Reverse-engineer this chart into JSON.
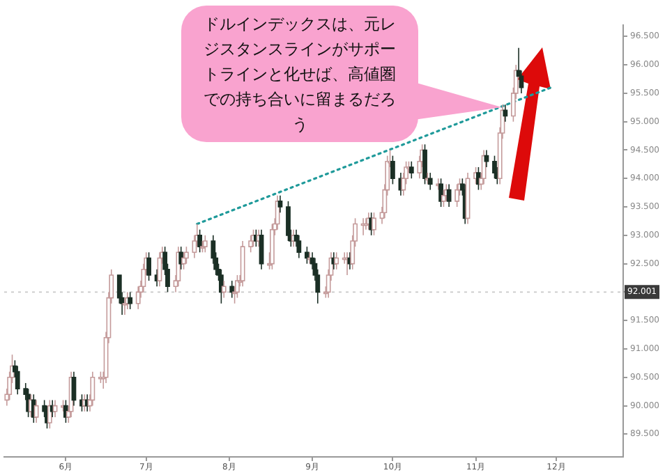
{
  "chart_data": {
    "type": "candlestick",
    "annotations": [
      "ドルインデックスは、元レジスタンスラインがサポートラインと化せば、高値圏での持ち合いに留まるだろう"
    ],
    "x": [
      "--05-10",
      "--05-11",
      "--05-12",
      "--05-13",
      "--05-14",
      "--05-17",
      "--05-18",
      "--05-19",
      "--05-20",
      "--05-21",
      "--05-24",
      "--05-25",
      "--05-26",
      "--05-27",
      "--05-28",
      "--05-31",
      "--06-01",
      "--06-02",
      "--06-03",
      "--06-04",
      "--06-07",
      "--06-08",
      "--06-09",
      "--06-10",
      "--06-11",
      "--06-14",
      "--06-15",
      "--06-16",
      "--06-17",
      "--06-18",
      "--06-21",
      "--06-22",
      "--06-23",
      "--06-24",
      "--06-25",
      "--06-28",
      "--06-29",
      "--06-30",
      "--07-01",
      "--07-02",
      "--07-05",
      "--07-06",
      "--07-07",
      "--07-08",
      "--07-09",
      "--07-12",
      "--07-13",
      "--07-14",
      "--07-15",
      "--07-16",
      "--07-19",
      "--07-20",
      "--07-21",
      "--07-22",
      "--07-23",
      "--07-26",
      "--07-27",
      "--07-28",
      "--07-29",
      "--07-30",
      "--08-02",
      "--08-03",
      "--08-04",
      "--08-05",
      "--08-06",
      "--08-09",
      "--08-10",
      "--08-11",
      "--08-12",
      "--08-13",
      "--08-16",
      "--08-17",
      "--08-18",
      "--08-19",
      "--08-20",
      "--08-23",
      "--08-24",
      "--08-25",
      "--08-26",
      "--08-27",
      "--08-30",
      "--08-31",
      "--09-01",
      "--09-02",
      "--09-03",
      "--09-06",
      "--09-07",
      "--09-08",
      "--09-09",
      "--09-10",
      "--09-13",
      "--09-14",
      "--09-15",
      "--09-16",
      "--09-17",
      "--09-20",
      "--09-21",
      "--09-22",
      "--09-23",
      "--09-24",
      "--09-27",
      "--09-28",
      "--09-29",
      "--09-30",
      "--10-01",
      "--10-04",
      "--10-05",
      "--10-06",
      "--10-07",
      "--10-08",
      "--10-11",
      "--10-12",
      "--10-13",
      "--10-14",
      "--10-15",
      "--10-18",
      "--10-19",
      "--10-20",
      "--10-21",
      "--10-22",
      "--10-25",
      "--10-26",
      "--10-27",
      "--10-28",
      "--10-29",
      "--11-01",
      "--11-02",
      "--11-03",
      "--11-04",
      "--11-05",
      "--11-08",
      "--11-09",
      "--11-10",
      "--11-11",
      "--11-12",
      "--11-15",
      "--11-16",
      "--11-17",
      "--11-18"
    ],
    "ohlc": [
      [
        90.1,
        90.3,
        90.0,
        90.2
      ],
      [
        90.2,
        90.6,
        90.1,
        90.5
      ],
      [
        90.5,
        90.9,
        90.4,
        90.7
      ],
      [
        90.7,
        90.8,
        90.5,
        90.6
      ],
      [
        90.6,
        90.7,
        90.2,
        90.3
      ],
      [
        90.3,
        90.4,
        90.1,
        90.2
      ],
      [
        90.2,
        90.3,
        89.8,
        89.9
      ],
      [
        89.9,
        90.2,
        89.8,
        90.1
      ],
      [
        90.1,
        90.2,
        89.7,
        89.8
      ],
      [
        89.8,
        90.1,
        89.7,
        90.0
      ],
      [
        90.0,
        90.1,
        89.8,
        89.9
      ],
      [
        89.9,
        90.0,
        89.6,
        89.7
      ],
      [
        89.7,
        90.1,
        89.6,
        90.0
      ],
      [
        90.0,
        90.1,
        89.8,
        89.9
      ],
      [
        89.9,
        90.1,
        89.8,
        90.0
      ],
      [
        90.0,
        90.1,
        89.9,
        90.0
      ],
      [
        90.0,
        90.1,
        89.7,
        89.8
      ],
      [
        89.8,
        90.0,
        89.7,
        89.9
      ],
      [
        89.9,
        90.6,
        89.8,
        90.5
      ],
      [
        90.5,
        90.6,
        90.0,
        90.1
      ],
      [
        90.1,
        90.2,
        89.9,
        90.0
      ],
      [
        90.0,
        90.2,
        89.9,
        90.1
      ],
      [
        90.1,
        90.2,
        89.9,
        90.0
      ],
      [
        90.0,
        90.2,
        89.9,
        90.1
      ],
      [
        90.1,
        90.6,
        90.0,
        90.5
      ],
      [
        90.5,
        90.6,
        90.4,
        90.5
      ],
      [
        90.5,
        90.6,
        90.3,
        90.5
      ],
      [
        90.5,
        91.3,
        90.4,
        91.2
      ],
      [
        91.2,
        92.0,
        91.1,
        91.9
      ],
      [
        91.9,
        92.4,
        91.8,
        92.3
      ],
      [
        92.3,
        92.3,
        91.8,
        91.9
      ],
      [
        91.9,
        92.0,
        91.6,
        91.8
      ],
      [
        91.8,
        91.9,
        91.6,
        91.8
      ],
      [
        91.8,
        92.0,
        91.7,
        91.9
      ],
      [
        91.9,
        92.0,
        91.7,
        91.8
      ],
      [
        91.8,
        92.1,
        91.7,
        92.0
      ],
      [
        92.0,
        92.2,
        91.9,
        92.1
      ],
      [
        92.1,
        92.5,
        92.0,
        92.4
      ],
      [
        92.4,
        92.7,
        92.3,
        92.6
      ],
      [
        92.6,
        92.7,
        92.2,
        92.3
      ],
      [
        92.3,
        92.4,
        92.1,
        92.2
      ],
      [
        92.2,
        92.7,
        92.1,
        92.6
      ],
      [
        92.6,
        92.8,
        92.5,
        92.7
      ],
      [
        92.7,
        92.8,
        92.3,
        92.4
      ],
      [
        92.4,
        92.5,
        92.0,
        92.1
      ],
      [
        92.1,
        92.3,
        92.0,
        92.2
      ],
      [
        92.2,
        92.8,
        92.1,
        92.7
      ],
      [
        92.7,
        92.8,
        92.4,
        92.5
      ],
      [
        92.5,
        92.7,
        92.4,
        92.6
      ],
      [
        92.6,
        92.8,
        92.5,
        92.7
      ],
      [
        92.7,
        93.0,
        92.6,
        92.9
      ],
      [
        92.9,
        93.2,
        92.8,
        93.0
      ],
      [
        93.0,
        93.1,
        92.7,
        92.8
      ],
      [
        92.8,
        92.9,
        92.7,
        92.8
      ],
      [
        92.8,
        93.0,
        92.7,
        92.9
      ],
      [
        92.9,
        93.0,
        92.5,
        92.6
      ],
      [
        92.6,
        92.7,
        92.3,
        92.4
      ],
      [
        92.4,
        92.5,
        92.2,
        92.3
      ],
      [
        92.3,
        92.4,
        91.8,
        92.0
      ],
      [
        92.0,
        92.2,
        91.9,
        92.1
      ],
      [
        92.1,
        92.2,
        91.9,
        92.0
      ],
      [
        92.0,
        92.1,
        91.8,
        92.0
      ],
      [
        92.0,
        92.3,
        91.9,
        92.2
      ],
      [
        92.2,
        92.3,
        92.1,
        92.2
      ],
      [
        92.2,
        92.9,
        92.1,
        92.8
      ],
      [
        92.8,
        93.0,
        92.7,
        92.9
      ],
      [
        92.9,
        93.1,
        92.8,
        93.0
      ],
      [
        93.0,
        93.1,
        92.8,
        92.9
      ],
      [
        92.9,
        93.1,
        92.8,
        93.0
      ],
      [
        93.0,
        93.1,
        92.4,
        92.5
      ],
      [
        92.5,
        92.7,
        92.4,
        92.5
      ],
      [
        92.5,
        93.2,
        92.4,
        93.1
      ],
      [
        93.1,
        93.3,
        93.0,
        93.2
      ],
      [
        93.2,
        93.7,
        93.1,
        93.6
      ],
      [
        93.6,
        93.7,
        93.4,
        93.5
      ],
      [
        93.5,
        93.6,
        92.9,
        93.0
      ],
      [
        93.0,
        93.1,
        92.8,
        92.9
      ],
      [
        92.9,
        93.1,
        92.8,
        93.0
      ],
      [
        93.0,
        93.1,
        92.8,
        92.9
      ],
      [
        92.9,
        93.0,
        92.6,
        92.7
      ],
      [
        92.7,
        92.8,
        92.5,
        92.6
      ],
      [
        92.6,
        92.7,
        92.5,
        92.6
      ],
      [
        92.6,
        92.7,
        92.4,
        92.5
      ],
      [
        92.5,
        92.6,
        92.2,
        92.3
      ],
      [
        92.3,
        92.4,
        91.8,
        92.0
      ],
      [
        92.0,
        92.1,
        91.9,
        92.0
      ],
      [
        92.0,
        92.4,
        91.9,
        92.3
      ],
      [
        92.3,
        92.7,
        92.2,
        92.6
      ],
      [
        92.6,
        92.7,
        92.4,
        92.5
      ],
      [
        92.5,
        92.7,
        92.4,
        92.6
      ],
      [
        92.6,
        92.7,
        92.5,
        92.6
      ],
      [
        92.6,
        92.7,
        92.3,
        92.6
      ],
      [
        92.6,
        92.7,
        92.4,
        92.5
      ],
      [
        92.5,
        93.0,
        92.4,
        92.9
      ],
      [
        92.9,
        93.3,
        92.8,
        93.2
      ],
      [
        93.2,
        93.3,
        93.0,
        93.2
      ],
      [
        93.2,
        93.3,
        93.1,
        93.2
      ],
      [
        93.2,
        93.4,
        93.1,
        93.3
      ],
      [
        93.3,
        93.4,
        93.0,
        93.1
      ],
      [
        93.1,
        93.4,
        93.0,
        93.3
      ],
      [
        93.3,
        93.5,
        93.2,
        93.4
      ],
      [
        93.4,
        93.9,
        93.3,
        93.8
      ],
      [
        93.8,
        94.4,
        93.7,
        94.3
      ],
      [
        94.3,
        94.5,
        94.2,
        94.3
      ],
      [
        94.3,
        94.4,
        93.9,
        94.0
      ],
      [
        94.0,
        94.1,
        93.7,
        93.8
      ],
      [
        93.8,
        94.1,
        93.7,
        94.0
      ],
      [
        94.0,
        94.3,
        93.9,
        94.2
      ],
      [
        94.2,
        94.3,
        94.1,
        94.2
      ],
      [
        94.2,
        94.3,
        94.0,
        94.1
      ],
      [
        94.1,
        94.4,
        94.0,
        94.3
      ],
      [
        94.3,
        94.6,
        94.2,
        94.5
      ],
      [
        94.5,
        94.6,
        93.9,
        94.0
      ],
      [
        94.0,
        94.1,
        93.9,
        94.0
      ],
      [
        94.0,
        94.1,
        93.8,
        93.9
      ],
      [
        93.9,
        94.0,
        93.8,
        93.9
      ],
      [
        93.9,
        94.0,
        93.5,
        93.6
      ],
      [
        93.6,
        93.8,
        93.5,
        93.7
      ],
      [
        93.7,
        93.9,
        93.6,
        93.8
      ],
      [
        93.8,
        93.9,
        93.5,
        93.6
      ],
      [
        93.6,
        93.9,
        93.5,
        93.8
      ],
      [
        93.8,
        94.0,
        93.7,
        93.9
      ],
      [
        93.9,
        94.0,
        93.7,
        93.8
      ],
      [
        93.8,
        93.9,
        93.2,
        93.3
      ],
      [
        93.3,
        94.1,
        93.2,
        94.0
      ],
      [
        94.0,
        94.2,
        93.9,
        94.1
      ],
      [
        94.1,
        94.2,
        93.8,
        93.9
      ],
      [
        93.9,
        94.1,
        93.8,
        94.0
      ],
      [
        94.0,
        94.5,
        93.9,
        94.4
      ],
      [
        94.4,
        94.5,
        94.2,
        94.3
      ],
      [
        94.3,
        94.4,
        94.0,
        94.1
      ],
      [
        94.1,
        94.2,
        93.9,
        94.0
      ],
      [
        94.0,
        94.9,
        93.9,
        94.8
      ],
      [
        94.8,
        95.3,
        94.7,
        95.2
      ],
      [
        95.2,
        95.3,
        95.0,
        95.1
      ],
      [
        95.1,
        95.6,
        95.0,
        95.5
      ],
      [
        95.5,
        96.0,
        95.4,
        95.9
      ],
      [
        95.9,
        96.3,
        95.8,
        95.8
      ],
      [
        95.8,
        95.9,
        95.5,
        95.6
      ]
    ],
    "series": [
      {
        "type": "line",
        "x": [
          "--07-20",
          "--11-29"
        ],
        "values": [
          93.2,
          95.6
        ],
        "color": "#1f9a9a",
        "line_style": "dotted"
      }
    ],
    "ref_lines": [
      {
        "axis": "y",
        "value": 92.001,
        "label": "92.001"
      }
    ],
    "xlim": [
      "--05-09",
      "--12-26"
    ],
    "xticks": [
      {
        "value": "--06-01",
        "label": "6月"
      },
      {
        "value": "--07-01",
        "label": "7月"
      },
      {
        "value": "--08-01",
        "label": "8月"
      },
      {
        "value": "--09-01",
        "label": "9月"
      },
      {
        "value": "--10-01",
        "label": "10月"
      },
      {
        "value": "--11-01",
        "label": "11月"
      },
      {
        "value": "--12-01",
        "label": "12月"
      }
    ],
    "ylim": [
      89.1,
      96.7
    ],
    "yticks": [
      {
        "value": 89.5,
        "label": "89.500"
      },
      {
        "value": 90,
        "label": "90.000"
      },
      {
        "value": 90.5,
        "label": "90.500"
      },
      {
        "value": 91,
        "label": "91.000"
      },
      {
        "value": 91.5,
        "label": "91.500"
      },
      {
        "value": 92,
        "label": null
      },
      {
        "value": 92.5,
        "label": "92.500"
      },
      {
        "value": 93,
        "label": "93.000"
      },
      {
        "value": 93.5,
        "label": "93.500"
      },
      {
        "value": 94,
        "label": "94.000"
      },
      {
        "value": 94.5,
        "label": "94.500"
      },
      {
        "value": 95,
        "label": "95.000"
      },
      {
        "value": 95.5,
        "label": "95.500"
      },
      {
        "value": 96,
        "label": "96.000"
      },
      {
        "value": 96.5,
        "label": "96.500"
      }
    ],
    "grid": false,
    "legend": false
  }
}
